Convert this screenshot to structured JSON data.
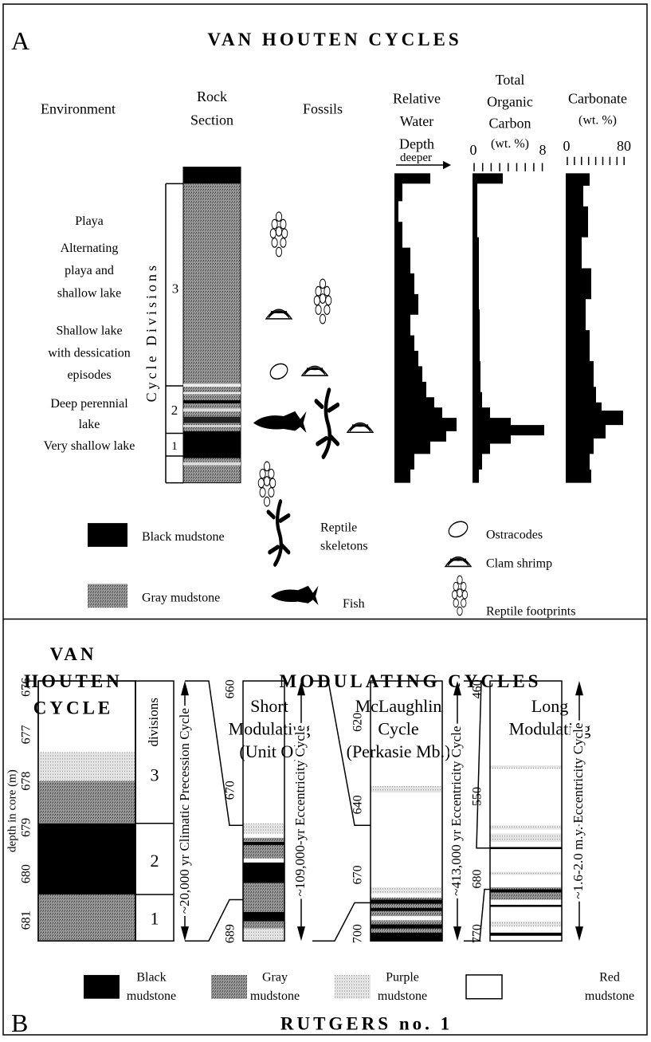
{
  "panel_a": {
    "label": "A",
    "title": "VAN HOUTEN CYCLES",
    "headers": {
      "environment": "Environment",
      "rock_section": [
        "Rock",
        "Section"
      ],
      "fossils": "Fossils",
      "water_depth": [
        "Relative",
        "Water",
        "Depth"
      ],
      "deeper": "deeper",
      "toc": [
        "Total",
        "Organic",
        "Carbon",
        "(wt. %)"
      ],
      "toc_min": 0,
      "toc_max": 8,
      "carbonate": [
        "Carbonate",
        "(wt. %)"
      ],
      "carbonate_min": 0,
      "carbonate_max": 80
    },
    "environments": [
      [
        "Playa"
      ],
      [
        "Alternating",
        "playa and",
        "shallow lake"
      ],
      [
        "Shallow lake",
        "with dessication",
        "episodes"
      ],
      [
        "Deep perennial",
        "lake"
      ],
      [
        "Very shallow lake"
      ]
    ],
    "cycle_divisions": "Cycle Divisions",
    "divisions": [
      3,
      2,
      1
    ],
    "legend": {
      "black_mudstone": "Black mudstone",
      "gray_mudstone": "Gray mudstone",
      "reptile_skeletons": [
        "Reptile",
        "skeletons"
      ],
      "fish": "Fish",
      "ostracodes": "Ostracodes",
      "clam_shrimp": "Clam shrimp",
      "reptile_footprints": "Reptile footprints"
    }
  },
  "panel_b": {
    "label": "B",
    "van_houten": {
      "title": [
        "VAN",
        "HOUTEN",
        "CYCLE"
      ],
      "ticks": [
        676,
        677,
        678,
        679,
        680,
        681
      ],
      "divisions_label": "divisions",
      "divisions": [
        3,
        2,
        1
      ],
      "axis_label": "depth in core (m)",
      "cycle": "~20,000 yr Climatic Precession Cycle"
    },
    "modulating_title": "MODULATING CYCLES",
    "short": {
      "title": [
        "Short",
        "Modulating",
        "(Unit O)"
      ],
      "ticks": [
        660,
        670,
        689
      ],
      "cycle": "~109,000-yr Eccentricity Cycle"
    },
    "mclaughlin": {
      "title": [
        "McLaughlin",
        "Cycle",
        "(Perkasie Mb.)"
      ],
      "ticks": [
        620,
        640,
        670,
        700
      ],
      "cycle": "~413,000 yr Eccentricity Cycle"
    },
    "long": {
      "title": [
        "Long",
        "Modulating"
      ],
      "ticks": [
        460,
        550,
        680,
        770
      ],
      "cycle": "~1.6-2.0 m.y. Eccentricity Cycle"
    },
    "legend": [
      [
        "Black",
        "mudstone"
      ],
      [
        "Gray",
        "mudstone"
      ],
      [
        "Purple",
        "mudstone"
      ],
      [
        "Red",
        "mudstone"
      ]
    ],
    "footer": "RUTGERS no. 1"
  }
}
